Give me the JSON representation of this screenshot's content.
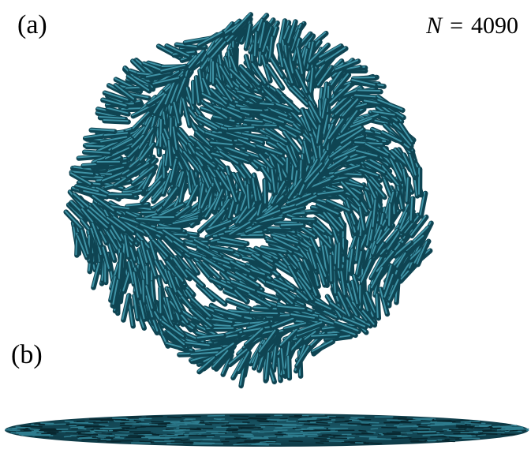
{
  "panel_a": {
    "label": "(a)",
    "annotation": {
      "symbol": "N",
      "operator": "=",
      "value": 4090
    }
  },
  "panel_b": {
    "label": "(b)"
  }
}
